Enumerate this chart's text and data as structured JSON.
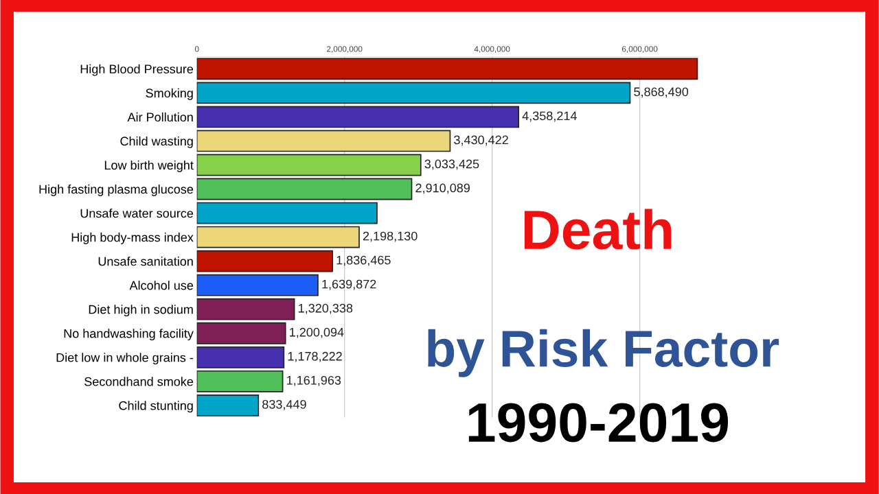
{
  "chart_data": {
    "type": "bar",
    "orientation": "horizontal",
    "title": "Death",
    "subtitle": "by Risk Factor",
    "annotations": [
      "1990-2019"
    ],
    "categories": [
      "High Blood Pressure",
      "Smoking",
      "Air Pollution",
      "Child wasting",
      "Low birth weight",
      "High fasting plasma glucose",
      "Unsafe water source",
      "High body-mass index",
      "Unsafe sanitation",
      "Alcohol use",
      "Diet high in sodium",
      "No handwashing facility",
      "Diet low in whole grains -",
      "Secondhand smoke",
      "Child stunting"
    ],
    "values": [
      6780000,
      5868490,
      4358214,
      3430422,
      3033425,
      2910089,
      2440000,
      2198130,
      1836465,
      1639872,
      1320338,
      1200094,
      1178222,
      1161963,
      833449
    ],
    "value_labels": [
      null,
      "5,868,490",
      "4,358,214",
      "3,430,422",
      "3,033,425",
      "2,910,089",
      null,
      "2,198,130",
      "1,836,465",
      "1,639,872",
      "1,320,338",
      "1,200,094",
      "1,178,222",
      "1,161,963",
      "833,449"
    ],
    "colors": [
      "#c01400",
      "#00a5c8",
      "#4630b0",
      "#ecd67a",
      "#86d04a",
      "#52c05a",
      "#00a5c8",
      "#ecd67a",
      "#c01400",
      "#1a5ef5",
      "#7f1f55",
      "#7f1f55",
      "#4630b0",
      "#52c05a",
      "#00a5c8"
    ],
    "xlim": [
      0,
      6800000
    ],
    "xticks": [
      {
        "value": 0,
        "label": "0"
      },
      {
        "value": 2000000,
        "label": "2,000,000"
      },
      {
        "value": 4000000,
        "label": "4,000,000"
      },
      {
        "value": 6000000,
        "label": "6,000,000"
      }
    ],
    "grid": "x"
  }
}
